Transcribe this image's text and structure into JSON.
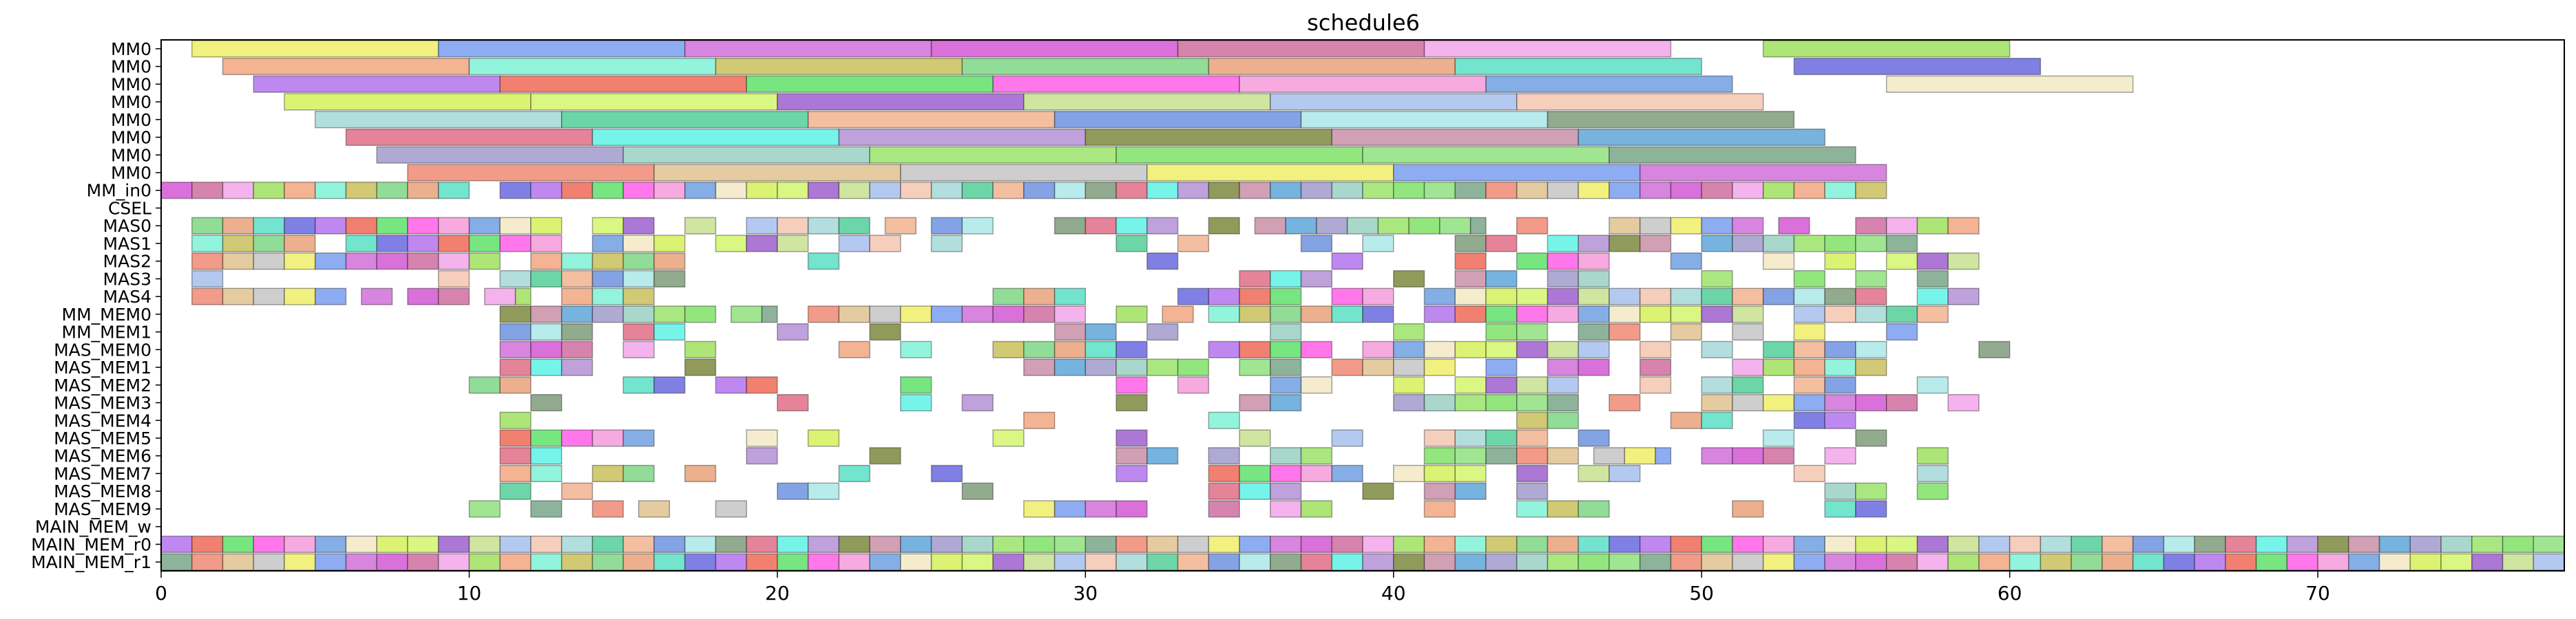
{
  "chart_data": {
    "type": "gantt",
    "title": "schedule6",
    "xlabel": "",
    "ylabel": "",
    "xlim": [
      0,
      78
    ],
    "grid": false,
    "x_ticks": [
      0,
      10,
      20,
      30,
      40,
      50,
      60,
      70
    ],
    "rows": [
      "MM0",
      "MM0",
      "MM0",
      "MM0",
      "MM0",
      "MM0",
      "MM0",
      "MM0",
      "MM_in0",
      "CSEL",
      "MAS0",
      "MAS1",
      "MAS2",
      "MAS3",
      "MAS4",
      "MM_MEM0",
      "MM_MEM1",
      "MAS_MEM0",
      "MAS_MEM1",
      "MAS_MEM2",
      "MAS_MEM3",
      "MAS_MEM4",
      "MAS_MEM5",
      "MAS_MEM6",
      "MAS_MEM7",
      "MAS_MEM8",
      "MAS_MEM9",
      "MAIN_MEM_w",
      "MAIN_MEM_r0",
      "MAIN_MEM_r1"
    ],
    "palette": [
      "#a6d8d8",
      "#5ef2e6",
      "#9be36b",
      "#f0ef6a",
      "#f2a67f",
      "#b473ee",
      "#d6f05a",
      "#53cf9a",
      "#b491d6",
      "#80e067",
      "#7a9ef0",
      "#7ff2d6",
      "#ee6a58",
      "#d3f56d",
      "#f2b391",
      "#7c8a3e",
      "#8fe07e",
      "#d070d9",
      "#c9c05c",
      "#5fe26b",
      "#9d5fce",
      "#6f93e0",
      "#c98fa8",
      "#7aa689",
      "#d357d3",
      "#7ed685",
      "#ff5fe6",
      "#c7e08f",
      "#ace8e8",
      "#5ea6d8",
      "#f08a73",
      "#cf6fa0",
      "#e9a27a",
      "#f49bd9",
      "#a6c0ed",
      "#7f9b79",
      "#a19bcd",
      "#e0c28f",
      "#f2a6ea",
      "#5adfc5",
      "#6fa0e0",
      "#f4c6b0",
      "#e16d86",
      "#9ad0c3",
      "#c6c6c6",
      "#a0e05f",
      "#6a6adf",
      "#f3e9c5"
    ],
    "mm_tasks": [
      [
        [
          1,
          9
        ],
        [
          9,
          17
        ],
        [
          17,
          25
        ],
        [
          25,
          33
        ],
        [
          33,
          41
        ],
        [
          41,
          49
        ],
        [
          52,
          60
        ]
      ],
      [
        [
          2,
          10
        ],
        [
          10,
          18
        ],
        [
          18,
          26
        ],
        [
          26,
          34
        ],
        [
          34,
          42
        ],
        [
          42,
          50
        ],
        [
          53,
          61
        ]
      ],
      [
        [
          3,
          11
        ],
        [
          11,
          19
        ],
        [
          19,
          27
        ],
        [
          27,
          35
        ],
        [
          35,
          43
        ],
        [
          43,
          51
        ],
        [
          56,
          64
        ]
      ],
      [
        [
          4,
          12
        ],
        [
          12,
          20
        ],
        [
          20,
          28
        ],
        [
          28,
          36
        ],
        [
          36,
          44
        ],
        [
          44,
          52
        ]
      ],
      [
        [
          5,
          13
        ],
        [
          13,
          21
        ],
        [
          21,
          29
        ],
        [
          29,
          37
        ],
        [
          37,
          45
        ],
        [
          45,
          53
        ]
      ],
      [
        [
          6,
          14
        ],
        [
          14,
          22
        ],
        [
          22,
          30
        ],
        [
          30,
          38
        ],
        [
          38,
          46
        ],
        [
          46,
          54
        ]
      ],
      [
        [
          7,
          15
        ],
        [
          15,
          23
        ],
        [
          23,
          31
        ],
        [
          31,
          39
        ],
        [
          39,
          47
        ],
        [
          47,
          55
        ]
      ],
      [
        [
          8,
          16
        ],
        [
          16,
          24
        ],
        [
          24,
          32
        ],
        [
          32,
          40
        ],
        [
          40,
          48
        ],
        [
          48,
          56
        ]
      ]
    ],
    "unit_rows": {
      "MM_in0": [
        [
          0,
          10
        ],
        [
          11,
          56
        ]
      ],
      "CSEL": [],
      "MAS0": [
        [
          1,
          13
        ],
        [
          14,
          16
        ],
        [
          17,
          18
        ],
        [
          19,
          23
        ],
        [
          23.5,
          24.5
        ],
        [
          25,
          27
        ],
        [
          29,
          33
        ],
        [
          34,
          35
        ],
        [
          35.5,
          43
        ],
        [
          44,
          45
        ],
        [
          47,
          52
        ],
        [
          52.5,
          53.5
        ],
        [
          55,
          59
        ]
      ],
      "MAS1": [
        [
          1,
          5
        ],
        [
          6,
          13
        ],
        [
          14,
          17
        ],
        [
          18,
          21
        ],
        [
          22,
          24
        ],
        [
          25,
          26
        ],
        [
          31,
          32
        ],
        [
          33,
          34
        ],
        [
          37,
          38
        ],
        [
          39,
          40
        ],
        [
          42,
          44
        ],
        [
          45,
          49
        ],
        [
          50,
          57
        ]
      ],
      "MAS2": [
        [
          1,
          11
        ],
        [
          12,
          17
        ],
        [
          21,
          22
        ],
        [
          32,
          33
        ],
        [
          38,
          39
        ],
        [
          42,
          43
        ],
        [
          44,
          47
        ],
        [
          49,
          50
        ],
        [
          52,
          53
        ],
        [
          54,
          55
        ],
        [
          56,
          59
        ]
      ],
      "MAS3": [
        [
          1,
          2
        ],
        [
          9,
          10
        ],
        [
          11,
          17
        ],
        [
          35,
          38
        ],
        [
          40,
          41
        ],
        [
          42,
          44
        ],
        [
          45,
          47
        ],
        [
          50,
          51
        ],
        [
          53,
          54
        ],
        [
          55,
          56
        ],
        [
          57,
          58
        ]
      ],
      "MAS4": [
        [
          1,
          6
        ],
        [
          6.5,
          7.5
        ],
        [
          8,
          10
        ],
        [
          10.5,
          12
        ],
        [
          13,
          16
        ],
        [
          27,
          30
        ],
        [
          33,
          37
        ],
        [
          38,
          40
        ],
        [
          41,
          56
        ],
        [
          57,
          59
        ]
      ],
      "MM_MEM0": [
        [
          11,
          18
        ],
        [
          18.5,
          20
        ],
        [
          21,
          30
        ],
        [
          31,
          32
        ],
        [
          32.5,
          33.5
        ],
        [
          34,
          40
        ],
        [
          41,
          52
        ],
        [
          53,
          58
        ]
      ],
      "MM_MEM1": [
        [
          11,
          14
        ],
        [
          15,
          17
        ],
        [
          20,
          21
        ],
        [
          23,
          24
        ],
        [
          29,
          31
        ],
        [
          32,
          33
        ],
        [
          36,
          37
        ],
        [
          40,
          41
        ],
        [
          43,
          45
        ],
        [
          46,
          48
        ],
        [
          49,
          50
        ],
        [
          51,
          52
        ],
        [
          53,
          54
        ],
        [
          56,
          57
        ]
      ],
      "MAS_MEM0": [
        [
          11,
          14
        ],
        [
          15,
          16
        ],
        [
          17,
          18
        ],
        [
          22,
          23
        ],
        [
          24,
          25
        ],
        [
          27,
          32
        ],
        [
          34,
          38
        ],
        [
          39,
          47
        ],
        [
          48,
          49
        ],
        [
          50,
          51
        ],
        [
          52,
          56
        ],
        [
          59,
          60
        ]
      ],
      "MAS_MEM1": [
        [
          11,
          14
        ],
        [
          17,
          18
        ],
        [
          28,
          34
        ],
        [
          35,
          37
        ],
        [
          38,
          42
        ],
        [
          43,
          44
        ],
        [
          45,
          47
        ],
        [
          48,
          49
        ],
        [
          51,
          56
        ]
      ],
      "MAS_MEM2": [
        [
          10,
          12
        ],
        [
          15,
          17
        ],
        [
          18,
          20
        ],
        [
          24,
          25
        ],
        [
          31,
          32
        ],
        [
          33,
          34
        ],
        [
          36,
          38
        ],
        [
          40,
          41
        ],
        [
          42,
          46
        ],
        [
          48,
          49
        ],
        [
          50,
          52
        ],
        [
          53,
          55
        ],
        [
          57,
          58
        ]
      ],
      "MAS_MEM3": [
        [
          12,
          13
        ],
        [
          20,
          21
        ],
        [
          24,
          25
        ],
        [
          26,
          27
        ],
        [
          31,
          32
        ],
        [
          35,
          37
        ],
        [
          40,
          46
        ],
        [
          47,
          48
        ],
        [
          50,
          57
        ],
        [
          58,
          59
        ]
      ],
      "MAS_MEM4": [
        [
          11,
          12
        ],
        [
          28,
          29
        ],
        [
          34,
          35
        ],
        [
          44,
          46
        ],
        [
          49,
          51
        ],
        [
          53,
          55
        ]
      ],
      "MAS_MEM5": [
        [
          11,
          16
        ],
        [
          19,
          20
        ],
        [
          21,
          22
        ],
        [
          27,
          28
        ],
        [
          31,
          32
        ],
        [
          35,
          36
        ],
        [
          38,
          39
        ],
        [
          41,
          45
        ],
        [
          46,
          47
        ],
        [
          52,
          53
        ],
        [
          55,
          56
        ]
      ],
      "MAS_MEM6": [
        [
          11,
          13
        ],
        [
          19,
          20
        ],
        [
          23,
          24
        ],
        [
          31,
          33
        ],
        [
          34,
          35
        ],
        [
          36,
          38
        ],
        [
          41,
          46
        ],
        [
          46.5,
          49
        ],
        [
          50,
          53
        ],
        [
          54,
          55
        ],
        [
          57,
          58
        ]
      ],
      "MAS_MEM7": [
        [
          11,
          13
        ],
        [
          14,
          16
        ],
        [
          17,
          18
        ],
        [
          22,
          23
        ],
        [
          25,
          26
        ],
        [
          31,
          32
        ],
        [
          34,
          39
        ],
        [
          40,
          43
        ],
        [
          44,
          45
        ],
        [
          46,
          48
        ],
        [
          53,
          54
        ],
        [
          57,
          58
        ]
      ],
      "MAS_MEM8": [
        [
          11,
          12
        ],
        [
          13,
          14
        ],
        [
          20,
          22
        ],
        [
          26,
          27
        ],
        [
          34,
          37
        ],
        [
          39,
          40
        ],
        [
          41,
          43
        ],
        [
          44,
          45
        ],
        [
          54,
          56
        ],
        [
          57,
          58
        ]
      ],
      "MAS_MEM9": [
        [
          10,
          11
        ],
        [
          12,
          13
        ],
        [
          14,
          15
        ],
        [
          15.5,
          16.5
        ],
        [
          18,
          19
        ],
        [
          28,
          32
        ],
        [
          34,
          35
        ],
        [
          36,
          38
        ],
        [
          41,
          42
        ],
        [
          44,
          47
        ],
        [
          51,
          52
        ],
        [
          54,
          56
        ]
      ],
      "MAIN_MEM_w": [],
      "MAIN_MEM_r0": [
        [
          0,
          78
        ]
      ],
      "MAIN_MEM_r1": [
        [
          0,
          78
        ]
      ]
    }
  }
}
